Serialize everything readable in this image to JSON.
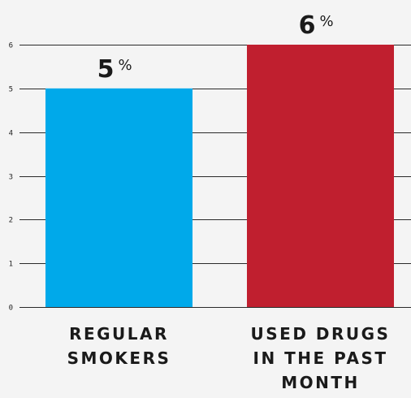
{
  "chart_data": {
    "type": "bar",
    "categories": [
      "REGULAR SMOKERS",
      "USED DRUGS IN THE PAST MONTH"
    ],
    "category_lines": [
      [
        "REGULAR",
        "SMOKERS"
      ],
      [
        "USED DRUGS",
        "IN THE PAST",
        "MONTH"
      ]
    ],
    "values": [
      5,
      6
    ],
    "value_labels": [
      "5",
      "6"
    ],
    "unit": "%",
    "colors": [
      "#00a9ea",
      "#c01f2f"
    ],
    "yticks": [
      0,
      1,
      2,
      3,
      4,
      5,
      6
    ],
    "ylim": [
      0,
      6
    ],
    "grid": true
  }
}
